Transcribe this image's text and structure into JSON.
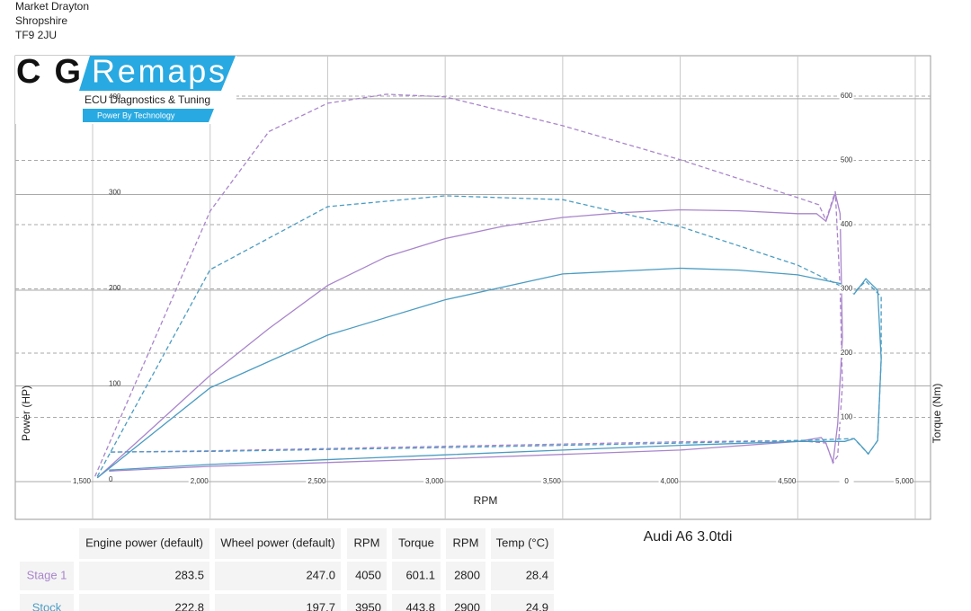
{
  "header": {
    "address": [
      "Market Drayton",
      "Shropshire",
      "TF9 2JU"
    ]
  },
  "logo": {
    "brand_left": "CG",
    "brand_right": "Remaps",
    "tagline": "ECU Diagnostics & Tuning",
    "slogan": "Power By Technology"
  },
  "chart_data": {
    "type": "line",
    "x_label": "RPM",
    "y_label": "Power (HP)",
    "y2_label": "Torque (Nm)",
    "xlim": [
      1171,
      5065
    ],
    "ylim": [
      -39.4,
      445
    ],
    "y2lim": [
      -58.7,
      663
    ],
    "xticks": [
      {
        "value": 1500,
        "label": "1,500"
      },
      {
        "value": 2000,
        "label": "2,000"
      },
      {
        "value": 2500,
        "label": "2,500"
      },
      {
        "value": 3000,
        "label": "3,000"
      },
      {
        "value": 3500,
        "label": "3,500"
      },
      {
        "value": 4000,
        "label": "4,000"
      },
      {
        "value": 4500,
        "label": "4,500"
      },
      {
        "value": 5000,
        "label": "5,000"
      }
    ],
    "yticks": [
      0,
      100,
      200,
      300,
      400
    ],
    "y2ticks": [
      0,
      100,
      200,
      300,
      400,
      500,
      600
    ],
    "grid": true,
    "series": [
      {
        "color": "#a985cc",
        "style": "solid",
        "axis": "y",
        "x": [
          1520,
          1750,
          2000,
          2250,
          2500,
          2750,
          3000,
          3250,
          3500,
          3750,
          4000,
          4250,
          4500,
          4580,
          4620,
          4660,
          4680,
          4690,
          4670,
          4650,
          4620,
          4600,
          4500,
          4000,
          3000,
          2000,
          1570
        ],
        "values": [
          4,
          55,
          111,
          160,
          205,
          235,
          254,
          267,
          276,
          281,
          284,
          283,
          280,
          280,
          272,
          301,
          280,
          150,
          60,
          20,
          40,
          46,
          42,
          33,
          24,
          16,
          11
        ]
      },
      {
        "color": "#a985cc",
        "style": "dashed",
        "axis": "y2",
        "x": [
          1510,
          2000,
          2250,
          2500,
          2750,
          3000,
          3500,
          4000,
          4500,
          4590,
          4620,
          4660,
          4680,
          4690,
          4670,
          4650,
          4620,
          4500,
          4000,
          3000,
          2000,
          1570
        ],
        "values": [
          8,
          421,
          545,
          589,
          603,
          599,
          554,
          501,
          442,
          431,
          407,
          452,
          300,
          150,
          40,
          29,
          60,
          64,
          62,
          55,
          48,
          46
        ]
      },
      {
        "color": "#4b9cc2",
        "style": "solid",
        "axis": "y",
        "x": [
          1520,
          2000,
          2500,
          3000,
          3500,
          4000,
          4250,
          4500,
          4680,
          4740,
          4790,
          4840,
          4855,
          4840,
          4800,
          4760,
          4740,
          4700,
          4500,
          4000,
          3000,
          2000,
          1570
        ],
        "values": [
          4,
          98,
          153,
          190,
          217,
          223,
          221,
          216,
          207,
          196,
          212,
          200,
          128,
          43,
          29,
          40,
          45,
          42,
          42,
          38,
          28,
          18,
          12
        ]
      },
      {
        "color": "#4b9cc2",
        "style": "dashed",
        "axis": "y2",
        "x": [
          1520,
          2000,
          2500,
          3000,
          3500,
          4000,
          4500,
          4680,
          4740,
          4790,
          4855,
          4855,
          4840,
          4800,
          4740,
          4500,
          4000,
          3000,
          2000,
          1570
        ],
        "values": [
          8,
          330,
          428,
          445,
          439,
          397,
          337,
          305,
          295,
          312,
          288,
          190,
          64,
          43,
          67,
          64,
          60,
          53,
          47,
          46
        ]
      }
    ]
  },
  "car_model": "Audi A6 3.0tdi",
  "table": {
    "columns": [
      "Engine power (default)",
      "Wheel power (default)",
      "RPM",
      "Torque",
      "RPM",
      "Temp (°C)"
    ],
    "rows": [
      [
        "Stage 1",
        "283.5",
        "247.0",
        "4050",
        "601.1",
        "2800",
        "28.4"
      ],
      [
        "Stock",
        "222.8",
        "197.7",
        "3950",
        "443.8",
        "2900",
        "24.9"
      ]
    ],
    "row_colors": [
      "#a985cc",
      "#4b9cc2"
    ]
  }
}
